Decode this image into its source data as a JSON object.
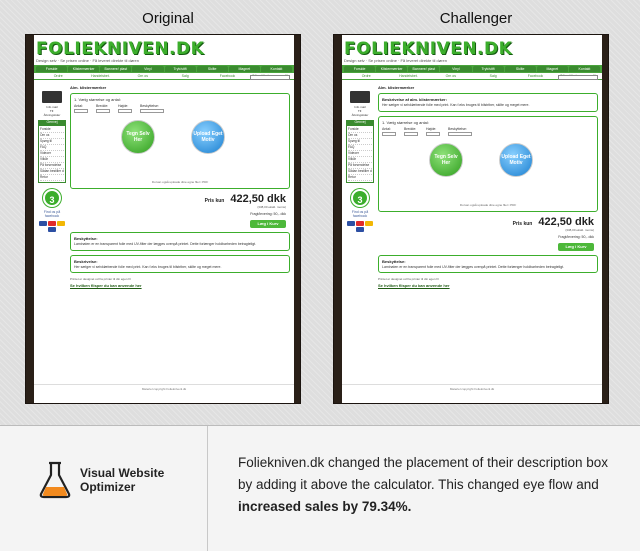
{
  "labels": {
    "original": "Original",
    "challenger": "Challenger"
  },
  "site": {
    "logo": "FOLIEKNIVEN.DK",
    "tagline": "Design selv  ·  Se prisen online  ·  Få leveret direkte til døren",
    "nav": [
      "Forside",
      "Klistermærker",
      "Bannere/ plast",
      "Vinyl",
      "Tryk/stift",
      "Skilte",
      "Magnet",
      "Kontakt"
    ],
    "nav2": [
      "Ordre",
      "Handelsbet.",
      "Om os",
      "Salg",
      "Facebook",
      "Ofte stillede spørgsmål",
      "Log ind",
      "Kurv"
    ],
    "search_btn": "Søg",
    "side_contact": [
      "Info mail",
      "Tlf.",
      "Åbningstider",
      "Man-Fre"
    ],
    "genvej_title": "Genvej",
    "genvej_items": [
      "Forside",
      "Om os",
      "Spørg til",
      "FAQ",
      "Videoer",
      "Vilkår",
      "På forsendelse",
      "Sådan bestiller du",
      "Retur",
      "Sitemap"
    ],
    "badge": "3",
    "facebook": "Find os på facebook",
    "breadcrumb": "Alm. klistermærker",
    "step": "1. Vælg størrelse og antal:",
    "fields": [
      "Antal:",
      "Bredde:",
      "Højde:",
      "Beskyttelse:"
    ],
    "btn_design": "Tegn Selv Her",
    "btn_upload": "Upload Eget Motiv",
    "calc_note": "Du kan også uploade dine egne filer i PDF",
    "price_label": "Pris kun",
    "price_value": "422,50 dkk",
    "price_sub": "(338,00 ekskl. moms)",
    "delivery": "Fragt/levering: 50,- dkk",
    "cart_btn": "Læg i Kurv",
    "desc_title": "Beskyttelse:",
    "desc_original": "Laminaten er en transparent folie med UV-filter der lægges ovenpå printet. Dette forlænger holdbarheden betragteligt.",
    "desc_box2_title": "Beskrivelse:",
    "desc_box2": "Her sælger vi selvklæbende folie med print. Kan f.eks bruges til bilstriber, skilte og meget mere.",
    "challenger_desc_title": "Beskrivelse af alm. klistermærker:",
    "challenger_desc": "Her sælger vi selvklæbende folie med print. Kan f.eks bruges til bilstriber, skilte og meget mere.",
    "footnote": "Printet er designet ud fra printer til din egen fil",
    "link": "Se hvilken flisper du kan anvende her",
    "copyright": "Materiel copyright Folieknivenl.dk"
  },
  "brand": {
    "line1": "Visual Website",
    "line2": "Optimizer"
  },
  "caption": {
    "part1": "Foliekniven.dk changed the placement of their description box by adding it above the calculator. This changed eye flow and ",
    "bold": "increased sales by 79.34%."
  },
  "colors": {
    "brand_green": "#3cae2c",
    "frame_brown": "#2a2018"
  }
}
